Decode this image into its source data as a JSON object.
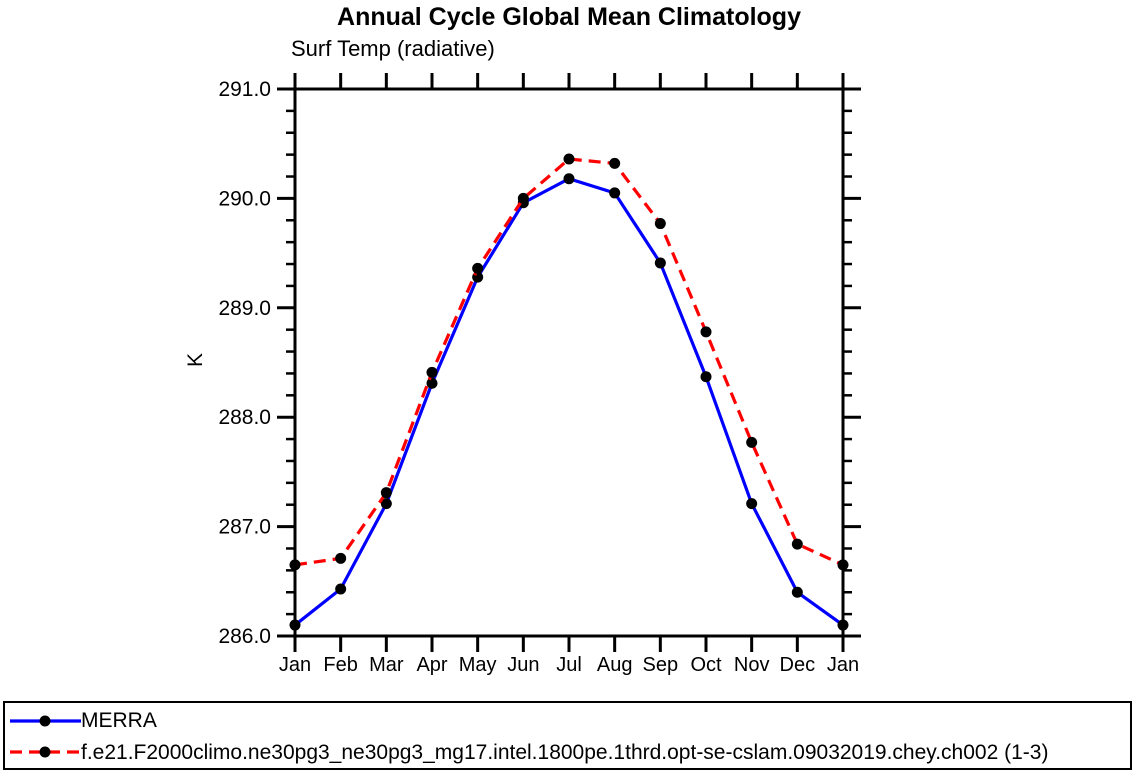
{
  "title": "Annual Cycle Global Mean Climatology",
  "chart_data": {
    "type": "line",
    "title": "Annual Cycle Global Mean Climatology",
    "subtitle": "Surf Temp (radiative)",
    "ylabel": "K",
    "xlabel": "",
    "categories": [
      "Jan",
      "Feb",
      "Mar",
      "Apr",
      "May",
      "Jun",
      "Jul",
      "Aug",
      "Sep",
      "Oct",
      "Nov",
      "Dec",
      "Jan"
    ],
    "ylim": [
      286.0,
      291.0
    ],
    "ytick_major_interval": 1.0,
    "ytick_minor_interval": 0.2,
    "ytick_labels": [
      "286.0",
      "287.0",
      "288.0",
      "289.0",
      "290.0",
      "291.0"
    ],
    "grid": false,
    "legend_position": "bottom-box",
    "frame_color": "#000000",
    "marker_color": "#000000",
    "series": [
      {
        "name": "MERRA",
        "color": "#0000ff",
        "line_style": "solid",
        "marker": "filled-circle",
        "values": [
          286.1,
          286.43,
          287.21,
          288.31,
          289.28,
          289.96,
          290.18,
          290.05,
          289.41,
          288.37,
          287.21,
          286.4,
          286.1
        ]
      },
      {
        "name": "f.e21.F2000climo.ne30pg3_ne30pg3_mg17.intel.1800pe.1thrd.opt-se-cslam.09032019.chey.ch002 (1-3)",
        "color": "#ff0000",
        "line_style": "dashed",
        "marker": "filled-circle",
        "values": [
          286.65,
          286.71,
          287.31,
          288.41,
          289.36,
          290.0,
          290.36,
          290.32,
          289.77,
          288.78,
          287.77,
          286.84,
          286.65
        ]
      }
    ]
  }
}
